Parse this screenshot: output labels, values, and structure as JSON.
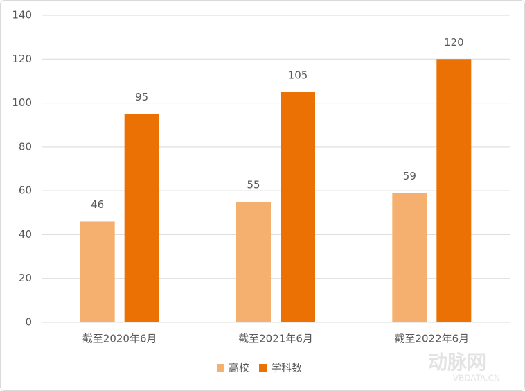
{
  "chart_data": {
    "type": "bar",
    "categories": [
      "截至2020年6月",
      "截至2021年6月",
      "截至2022年6月"
    ],
    "series": [
      {
        "name": "高校",
        "color": "#f5af6e",
        "values": [
          46,
          55,
          59
        ]
      },
      {
        "name": "学科数",
        "color": "#ec7104",
        "values": [
          95,
          105,
          120
        ]
      }
    ],
    "ylim": [
      0,
      140
    ],
    "yticks": [
      0,
      20,
      40,
      60,
      80,
      100,
      120,
      140
    ],
    "grid": true,
    "legend": "bottom"
  },
  "watermark": {
    "brand": "动脉网",
    "site": "VBDATA.CN"
  }
}
